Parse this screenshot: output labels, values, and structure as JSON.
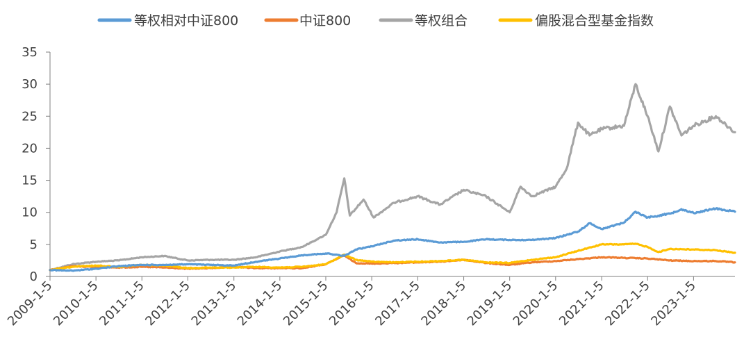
{
  "chart_data": {
    "type": "line",
    "title": "",
    "xlabel": "",
    "ylabel": "",
    "ylim": [
      0,
      35
    ],
    "yticks": [
      0,
      5,
      10,
      15,
      20,
      25,
      30,
      35
    ],
    "xlim": [
      "2009-01-05",
      "2023-11-30"
    ],
    "xticks": [
      "2009-1-5",
      "2010-1-5",
      "2011-1-5",
      "2012-1-5",
      "2013-1-5",
      "2014-1-5",
      "2015-1-5",
      "2016-1-5",
      "2017-1-5",
      "2018-1-5",
      "2019-1-5",
      "2020-1-5",
      "2021-1-5",
      "2022-1-5",
      "2023-1-5"
    ],
    "grid": false,
    "legend_position": "top",
    "series": [
      {
        "name": "等权相对中证800",
        "color": "#5b9bd5",
        "points": [
          [
            "2009-01-05",
            1.0
          ],
          [
            "2009-07-01",
            0.9
          ],
          [
            "2010-01-05",
            1.2
          ],
          [
            "2010-07-01",
            1.6
          ],
          [
            "2011-01-05",
            1.8
          ],
          [
            "2011-07-01",
            1.8
          ],
          [
            "2012-01-05",
            1.9
          ],
          [
            "2012-07-01",
            1.8
          ],
          [
            "2013-01-05",
            1.7
          ],
          [
            "2013-07-01",
            2.3
          ],
          [
            "2014-01-05",
            2.8
          ],
          [
            "2014-07-01",
            3.3
          ],
          [
            "2015-01-05",
            3.6
          ],
          [
            "2015-06-01",
            3.2
          ],
          [
            "2015-09-01",
            4.2
          ],
          [
            "2016-01-05",
            4.7
          ],
          [
            "2016-07-01",
            5.6
          ],
          [
            "2017-01-05",
            5.8
          ],
          [
            "2017-07-01",
            5.3
          ],
          [
            "2018-01-05",
            5.4
          ],
          [
            "2018-07-01",
            5.8
          ],
          [
            "2019-01-05",
            5.7
          ],
          [
            "2019-07-01",
            5.7
          ],
          [
            "2020-01-05",
            6.0
          ],
          [
            "2020-07-01",
            7.0
          ],
          [
            "2020-10-01",
            8.3
          ],
          [
            "2021-01-05",
            7.4
          ],
          [
            "2021-07-01",
            8.4
          ],
          [
            "2021-10-01",
            10.1
          ],
          [
            "2022-01-05",
            9.2
          ],
          [
            "2022-07-01",
            9.8
          ],
          [
            "2022-10-01",
            10.5
          ],
          [
            "2023-01-05",
            9.9
          ],
          [
            "2023-07-01",
            10.6
          ],
          [
            "2023-11-30",
            10.1
          ]
        ]
      },
      {
        "name": "中证800",
        "color": "#ed7d31",
        "points": [
          [
            "2009-01-05",
            1.0
          ],
          [
            "2009-07-01",
            1.6
          ],
          [
            "2010-01-05",
            1.5
          ],
          [
            "2010-07-01",
            1.4
          ],
          [
            "2011-01-05",
            1.5
          ],
          [
            "2011-07-01",
            1.4
          ],
          [
            "2012-01-05",
            1.2
          ],
          [
            "2012-07-01",
            1.3
          ],
          [
            "2013-01-05",
            1.5
          ],
          [
            "2013-07-01",
            1.3
          ],
          [
            "2014-01-05",
            1.3
          ],
          [
            "2014-07-01",
            1.3
          ],
          [
            "2015-01-05",
            1.9
          ],
          [
            "2015-06-01",
            3.3
          ],
          [
            "2015-09-01",
            2.1
          ],
          [
            "2016-01-05",
            2.0
          ],
          [
            "2016-07-01",
            2.1
          ],
          [
            "2017-01-05",
            2.2
          ],
          [
            "2017-07-01",
            2.3
          ],
          [
            "2018-01-05",
            2.6
          ],
          [
            "2018-07-01",
            2.1
          ],
          [
            "2019-01-05",
            1.8
          ],
          [
            "2019-07-01",
            2.2
          ],
          [
            "2020-01-05",
            2.4
          ],
          [
            "2020-07-01",
            2.7
          ],
          [
            "2021-01-05",
            3.0
          ],
          [
            "2021-07-01",
            2.9
          ],
          [
            "2022-01-05",
            2.8
          ],
          [
            "2022-07-01",
            2.5
          ],
          [
            "2023-01-05",
            2.4
          ],
          [
            "2023-07-01",
            2.4
          ],
          [
            "2023-11-30",
            2.2
          ]
        ]
      },
      {
        "name": "等权组合",
        "color": "#a5a5a5",
        "points": [
          [
            "2009-01-05",
            1.0
          ],
          [
            "2009-07-01",
            1.9
          ],
          [
            "2010-01-05",
            2.3
          ],
          [
            "2010-07-01",
            2.5
          ],
          [
            "2011-01-05",
            3.0
          ],
          [
            "2011-07-01",
            3.2
          ],
          [
            "2012-01-05",
            2.5
          ],
          [
            "2012-07-01",
            2.6
          ],
          [
            "2013-01-05",
            2.6
          ],
          [
            "2013-07-01",
            3.0
          ],
          [
            "2014-01-05",
            3.9
          ],
          [
            "2014-07-01",
            4.6
          ],
          [
            "2015-01-05",
            6.5
          ],
          [
            "2015-04-01",
            10.0
          ],
          [
            "2015-06-01",
            15.3
          ],
          [
            "2015-07-15",
            9.5
          ],
          [
            "2015-11-01",
            12.0
          ],
          [
            "2016-01-20",
            9.2
          ],
          [
            "2016-07-01",
            11.5
          ],
          [
            "2017-01-05",
            12.5
          ],
          [
            "2017-07-01",
            11.2
          ],
          [
            "2018-01-05",
            13.5
          ],
          [
            "2018-07-01",
            12.5
          ],
          [
            "2019-01-05",
            10.0
          ],
          [
            "2019-04-01",
            14.0
          ],
          [
            "2019-07-01",
            12.5
          ],
          [
            "2020-01-05",
            14.0
          ],
          [
            "2020-04-01",
            16.8
          ],
          [
            "2020-07-01",
            24.0
          ],
          [
            "2020-10-01",
            22.0
          ],
          [
            "2021-01-05",
            23.0
          ],
          [
            "2021-07-01",
            23.5
          ],
          [
            "2021-10-01",
            30.0
          ],
          [
            "2022-01-05",
            25.0
          ],
          [
            "2022-04-01",
            19.5
          ],
          [
            "2022-07-01",
            26.5
          ],
          [
            "2022-10-01",
            22.0
          ],
          [
            "2023-01-05",
            23.5
          ],
          [
            "2023-07-01",
            25.0
          ],
          [
            "2023-11-30",
            22.5
          ]
        ]
      },
      {
        "name": "偏股混合型基金指数",
        "color": "#ffc000",
        "points": [
          [
            "2009-01-05",
            1.0
          ],
          [
            "2009-07-01",
            1.5
          ],
          [
            "2010-01-05",
            1.7
          ],
          [
            "2010-07-01",
            1.5
          ],
          [
            "2011-01-05",
            1.8
          ],
          [
            "2011-07-01",
            1.7
          ],
          [
            "2012-01-05",
            1.3
          ],
          [
            "2012-07-01",
            1.4
          ],
          [
            "2013-01-05",
            1.4
          ],
          [
            "2013-07-01",
            1.5
          ],
          [
            "2014-01-05",
            1.4
          ],
          [
            "2014-07-01",
            1.5
          ],
          [
            "2015-01-05",
            1.9
          ],
          [
            "2015-06-01",
            3.4
          ],
          [
            "2015-09-01",
            2.6
          ],
          [
            "2016-01-05",
            2.3
          ],
          [
            "2016-07-01",
            2.2
          ],
          [
            "2017-01-05",
            2.3
          ],
          [
            "2017-07-01",
            2.4
          ],
          [
            "2018-01-05",
            2.6
          ],
          [
            "2018-07-01",
            2.2
          ],
          [
            "2019-01-05",
            2.1
          ],
          [
            "2019-07-01",
            2.6
          ],
          [
            "2020-01-05",
            3.0
          ],
          [
            "2020-07-01",
            4.0
          ],
          [
            "2021-01-05",
            5.0
          ],
          [
            "2021-07-01",
            5.0
          ],
          [
            "2021-10-01",
            5.1
          ],
          [
            "2022-01-05",
            4.6
          ],
          [
            "2022-04-01",
            3.8
          ],
          [
            "2022-07-01",
            4.3
          ],
          [
            "2023-01-05",
            4.2
          ],
          [
            "2023-07-01",
            4.1
          ],
          [
            "2023-11-30",
            3.7
          ]
        ]
      }
    ]
  }
}
